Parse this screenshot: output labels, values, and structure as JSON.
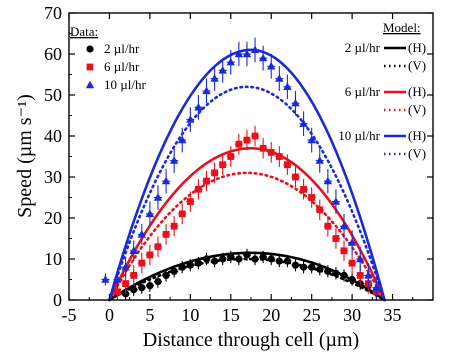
{
  "chart_data": {
    "type": "scatter",
    "xlabel": "Distance through cell (µm)",
    "ylabel": "Speed (µm s⁻¹)",
    "xlim": [
      -5,
      40
    ],
    "ylim": [
      0,
      70
    ],
    "xticks": [
      -5,
      0,
      5,
      10,
      15,
      20,
      25,
      30,
      35
    ],
    "yticks": [
      0,
      10,
      20,
      30,
      40,
      50,
      60,
      70
    ],
    "grid": false,
    "data_legend": {
      "title": "Data:",
      "entries": [
        {
          "label": "2 µl/hr",
          "marker": "circle",
          "color": "#000000"
        },
        {
          "label": "6 µl/hr",
          "marker": "square",
          "color": "#e8101c"
        },
        {
          "label": "10 µl/hr",
          "marker": "triangle",
          "color": "#1a2bd6"
        }
      ]
    },
    "model_legend": {
      "title": "Model:",
      "rows": [
        {
          "label": "2 µl/hr",
          "tag": "(H)",
          "style": "solid",
          "color": "#000000"
        },
        {
          "label": "",
          "tag": "(V)",
          "style": "dotted",
          "color": "#000000"
        },
        {
          "label": "6 µl/hr",
          "tag": "(H)",
          "style": "solid",
          "color": "#e8101c"
        },
        {
          "label": "",
          "tag": "(V)",
          "style": "dotted",
          "color": "#e8101c"
        },
        {
          "label": "10 µl/hr",
          "tag": "(H)",
          "style": "solid",
          "color": "#1a2bd6"
        },
        {
          "label": "",
          "tag": "(V)",
          "style": "dotted",
          "color": "#1a2bd6"
        }
      ]
    },
    "data_series": [
      {
        "label": "2 µl/hr",
        "marker": "circle",
        "color": "#000000",
        "x": [
          2,
          3,
          4,
          5,
          6,
          7,
          8,
          9,
          10,
          11,
          12,
          13,
          14,
          15,
          16,
          17,
          18,
          19,
          20,
          21,
          22,
          23,
          24,
          25,
          26,
          27,
          28,
          29,
          30,
          31,
          32,
          33
        ],
        "y": [
          1.5,
          2.5,
          3.0,
          3.5,
          4.5,
          6.0,
          7.0,
          8.0,
          8.5,
          9.0,
          10.0,
          9.5,
          10.0,
          10.5,
          10.0,
          11.0,
          10.0,
          10.5,
          10.0,
          9.5,
          9.5,
          8.5,
          8.0,
          8.0,
          7.5,
          7.0,
          6.5,
          6.0,
          5.0,
          4.0,
          3.5,
          2.0
        ],
        "err": [
          1.5,
          1.5,
          1.5,
          1.5,
          1.5,
          1.5,
          1.5,
          1.5,
          1.5,
          1.5,
          1.5,
          1.5,
          1.5,
          1.5,
          1.5,
          1.5,
          1.5,
          1.5,
          1.5,
          1.5,
          1.5,
          1.5,
          1.5,
          1.5,
          1.5,
          1.5,
          1.5,
          1.5,
          1.5,
          1.5,
          1.5,
          1.5
        ]
      },
      {
        "label": "6 µl/hr",
        "marker": "square",
        "color": "#e8101c",
        "x": [
          1,
          2,
          3,
          4,
          5,
          6,
          7,
          8,
          9,
          10,
          11,
          12,
          13,
          14,
          15,
          16,
          17,
          18,
          19,
          20,
          21,
          22,
          23,
          24,
          25,
          26,
          27,
          28,
          29,
          30,
          31,
          32,
          33
        ],
        "y": [
          2.0,
          4.0,
          6.0,
          9.0,
          11.0,
          13.0,
          16.0,
          18.0,
          21.0,
          24.0,
          27.0,
          29.0,
          31.0,
          33.0,
          35.0,
          38.0,
          39.0,
          40.0,
          37.0,
          36.0,
          35.0,
          33.0,
          30.0,
          27.0,
          25.0,
          22.0,
          18.0,
          15.0,
          12.0,
          9.0,
          6.0,
          4.0,
          2.0
        ],
        "err": [
          2.5,
          2.5,
          2.5,
          2.5,
          2.5,
          2.5,
          2.5,
          2.5,
          2.5,
          2.5,
          2.5,
          2.5,
          2.5,
          2.5,
          2.5,
          2.5,
          2.5,
          2.5,
          2.5,
          2.5,
          2.5,
          2.5,
          2.5,
          2.5,
          2.5,
          2.5,
          2.5,
          2.5,
          2.5,
          2.5,
          2.5,
          2.5,
          2.5
        ]
      },
      {
        "label": "10 µl/hr",
        "marker": "triangle",
        "color": "#1a2bd6",
        "x": [
          -0.5,
          1,
          2,
          3,
          4,
          5,
          6,
          7,
          8,
          9,
          10,
          11,
          12,
          13,
          14,
          15,
          16,
          17,
          18,
          19,
          20,
          21,
          22,
          23,
          24,
          25,
          26,
          27,
          28,
          29,
          30,
          31,
          32,
          33
        ],
        "y": [
          5.0,
          5.0,
          8.0,
          12.0,
          16.0,
          21.0,
          25.0,
          29.0,
          34.0,
          39.0,
          44.0,
          47.0,
          51.0,
          54.0,
          56.0,
          58.0,
          60.0,
          60.0,
          61.0,
          59.0,
          57.0,
          54.0,
          52.0,
          48.0,
          43.0,
          39.0,
          34.0,
          29.0,
          24.0,
          18.0,
          14.0,
          10.0,
          6.0,
          3.0
        ],
        "err": [
          1.5,
          2.0,
          2.5,
          2.5,
          2.5,
          3.0,
          3.0,
          3.0,
          3.0,
          3.0,
          3.0,
          3.0,
          3.0,
          3.0,
          3.0,
          3.0,
          3.0,
          3.0,
          3.0,
          3.0,
          3.0,
          3.0,
          3.0,
          3.0,
          3.0,
          3.0,
          3.0,
          3.0,
          3.0,
          3.0,
          3.0,
          3.0,
          3.0,
          3.0
        ]
      }
    ],
    "model_series": [
      {
        "label": "2 µl/hr (H)",
        "style": "solid",
        "color": "#000000",
        "x0": 0,
        "x1": 34,
        "peak_x": 17.5,
        "peak_y": 11.5
      },
      {
        "label": "2 µl/hr (V)",
        "style": "dotted",
        "color": "#000000",
        "x0": 0,
        "x1": 34,
        "peak_x": 17,
        "peak_y": 10
      },
      {
        "label": "6 µl/hr (H)",
        "style": "solid",
        "color": "#e8101c",
        "x0": 0,
        "x1": 34,
        "peak_x": 17.5,
        "peak_y": 37
      },
      {
        "label": "6 µl/hr (V)",
        "style": "dotted",
        "color": "#e8101c",
        "x0": 0,
        "x1": 34,
        "peak_x": 17,
        "peak_y": 31
      },
      {
        "label": "10 µl/hr (H)",
        "style": "solid",
        "color": "#1a2bd6",
        "x0": 0,
        "x1": 34,
        "peak_x": 17.5,
        "peak_y": 61
      },
      {
        "label": "10 µl/hr (V)",
        "style": "dotted",
        "color": "#1a2bd6",
        "x0": 0,
        "x1": 34,
        "peak_x": 17,
        "peak_y": 52
      }
    ]
  }
}
